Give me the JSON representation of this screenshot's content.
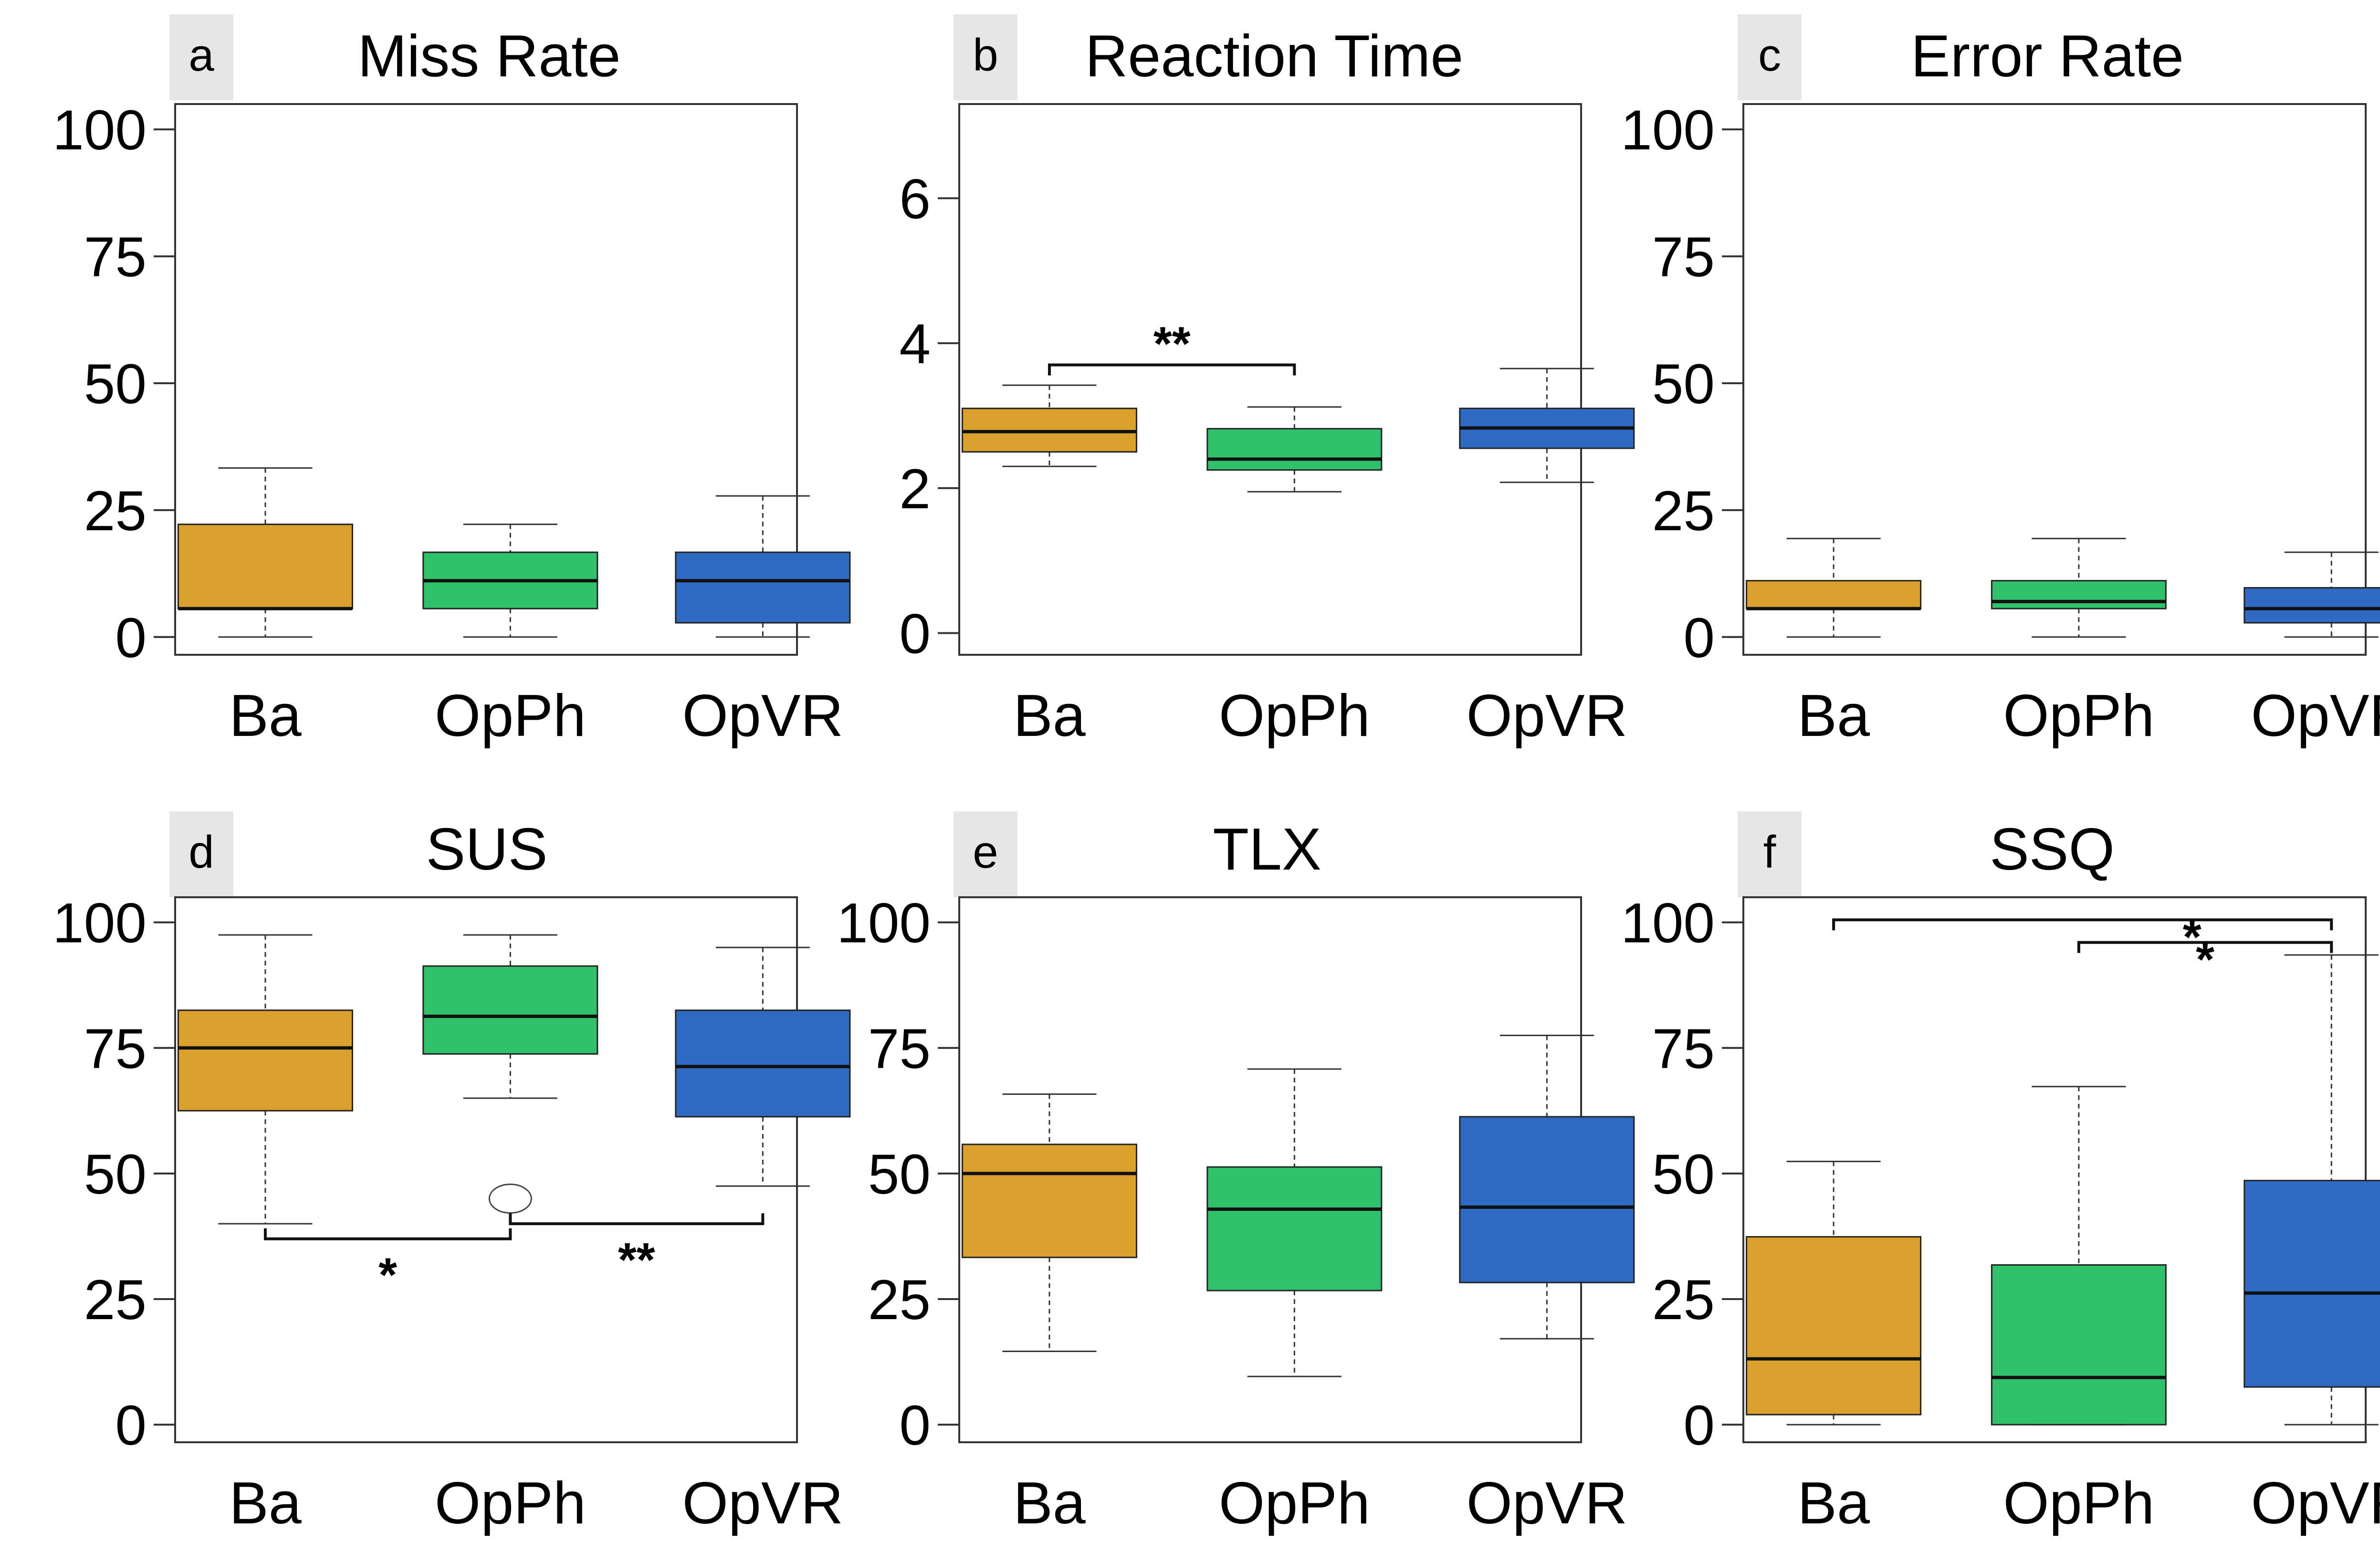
{
  "colors": {
    "Ba": "#D9A02C",
    "OpPh": "#2FC26B",
    "OpVR": "#2F6BC4",
    "label_bg": "#E6E6E6"
  },
  "chart_data": [
    {
      "id": "a",
      "type": "box",
      "panel_label": "a",
      "title": "Miss Rate",
      "categories": [
        "Ba",
        "OpPh",
        "OpVR"
      ],
      "ylim": [
        -3.5,
        105
      ],
      "yticks": [
        0,
        25,
        50,
        75,
        100
      ],
      "boxes": [
        {
          "name": "Ba",
          "min": 0,
          "q1": 5.6,
          "median": 5.6,
          "q3": 22.2,
          "max": 33.3
        },
        {
          "name": "OpPh",
          "min": 0,
          "q1": 5.6,
          "median": 11.1,
          "q3": 16.7,
          "max": 22.2
        },
        {
          "name": "OpVR",
          "min": 0,
          "q1": 2.8,
          "median": 11.1,
          "q3": 16.7,
          "max": 27.8
        }
      ],
      "brackets": []
    },
    {
      "id": "b",
      "type": "box",
      "panel_label": "b",
      "title": "Reaction Time",
      "categories": [
        "Ba",
        "OpPh",
        "OpVR"
      ],
      "ylim": [
        -0.3,
        7.3
      ],
      "yticks": [
        0,
        2,
        4,
        6
      ],
      "boxes": [
        {
          "name": "Ba",
          "min": 2.3,
          "q1": 2.5,
          "median": 2.78,
          "q3": 3.1,
          "max": 3.42
        },
        {
          "name": "OpPh",
          "min": 1.95,
          "q1": 2.25,
          "median": 2.4,
          "q3": 2.82,
          "max": 3.12
        },
        {
          "name": "OpVR",
          "min": 2.08,
          "q1": 2.55,
          "median": 2.83,
          "q3": 3.1,
          "max": 3.65
        }
      ],
      "brackets": [
        {
          "from": 0,
          "to": 1,
          "y": 3.7,
          "dir": "down",
          "label": "**"
        }
      ]
    },
    {
      "id": "c",
      "type": "box",
      "panel_label": "c",
      "title": "Error Rate",
      "categories": [
        "Ba",
        "OpPh",
        "OpVR"
      ],
      "ylim": [
        -3.5,
        105
      ],
      "yticks": [
        0,
        25,
        50,
        75,
        100
      ],
      "boxes": [
        {
          "name": "Ba",
          "min": 0,
          "q1": 5.6,
          "median": 5.6,
          "q3": 11.1,
          "max": 19.4
        },
        {
          "name": "OpPh",
          "min": 0,
          "q1": 5.6,
          "median": 7.0,
          "q3": 11.1,
          "max": 19.4
        },
        {
          "name": "OpVR",
          "min": 0,
          "q1": 2.8,
          "median": 5.6,
          "q3": 9.7,
          "max": 16.7
        }
      ],
      "brackets": []
    },
    {
      "id": "d",
      "type": "box",
      "panel_label": "d",
      "title": "SUS",
      "categories": [
        "Ba",
        "OpPh",
        "OpVR"
      ],
      "ylim": [
        -3.5,
        105
      ],
      "yticks": [
        0,
        25,
        50,
        75,
        100
      ],
      "boxes": [
        {
          "name": "Ba",
          "min": 40.0,
          "q1": 62.5,
          "median": 75.0,
          "q3": 82.5,
          "max": 97.5
        },
        {
          "name": "OpPh",
          "min": 65.0,
          "q1": 73.8,
          "median": 81.3,
          "q3": 91.3,
          "max": 97.5
        },
        {
          "name": "OpVR",
          "min": 47.5,
          "q1": 61.3,
          "median": 71.3,
          "q3": 82.5,
          "max": 95.0
        }
      ],
      "outliers": [
        {
          "box": 1,
          "value": 45.0
        }
      ],
      "brackets": [
        {
          "from": 0,
          "to": 1,
          "y": 37.0,
          "dir": "up",
          "label": "*"
        },
        {
          "from": 1,
          "to": 2,
          "y": 40.0,
          "dir": "up",
          "label": "**"
        }
      ]
    },
    {
      "id": "e",
      "type": "box",
      "panel_label": "e",
      "title": "TLX",
      "categories": [
        "Ba",
        "OpPh",
        "OpVR"
      ],
      "ylim": [
        -3.5,
        105
      ],
      "yticks": [
        0,
        25,
        50,
        75,
        100
      ],
      "boxes": [
        {
          "name": "Ba",
          "min": 14.6,
          "q1": 33.3,
          "median": 50.0,
          "q3": 55.8,
          "max": 65.8
        },
        {
          "name": "OpPh",
          "min": 9.6,
          "q1": 26.7,
          "median": 42.9,
          "q3": 51.3,
          "max": 70.8
        },
        {
          "name": "OpVR",
          "min": 17.1,
          "q1": 28.3,
          "median": 43.3,
          "q3": 61.3,
          "max": 77.5
        }
      ],
      "brackets": []
    },
    {
      "id": "f",
      "type": "box",
      "panel_label": "f",
      "title": "SSQ",
      "categories": [
        "Ba",
        "OpPh",
        "OpVR"
      ],
      "ylim": [
        -3.5,
        105
      ],
      "yticks": [
        0,
        25,
        50,
        75,
        100
      ],
      "boxes": [
        {
          "name": "Ba",
          "min": 0,
          "q1": 2.0,
          "median": 13.1,
          "q3": 37.4,
          "max": 52.4
        },
        {
          "name": "OpPh",
          "min": 0,
          "q1": 0,
          "median": 9.4,
          "q3": 31.8,
          "max": 67.3
        },
        {
          "name": "OpVR",
          "min": 0,
          "q1": 7.5,
          "median": 26.2,
          "q3": 48.6,
          "max": 93.5
        }
      ],
      "brackets": [
        {
          "from": 0,
          "to": 2,
          "y": 100.5,
          "dir": "down",
          "label": "*",
          "label_pos": 0.72
        },
        {
          "from": 1,
          "to": 2,
          "y": 96.0,
          "dir": "down",
          "label": "*",
          "label_pos": 0.5
        }
      ]
    }
  ]
}
